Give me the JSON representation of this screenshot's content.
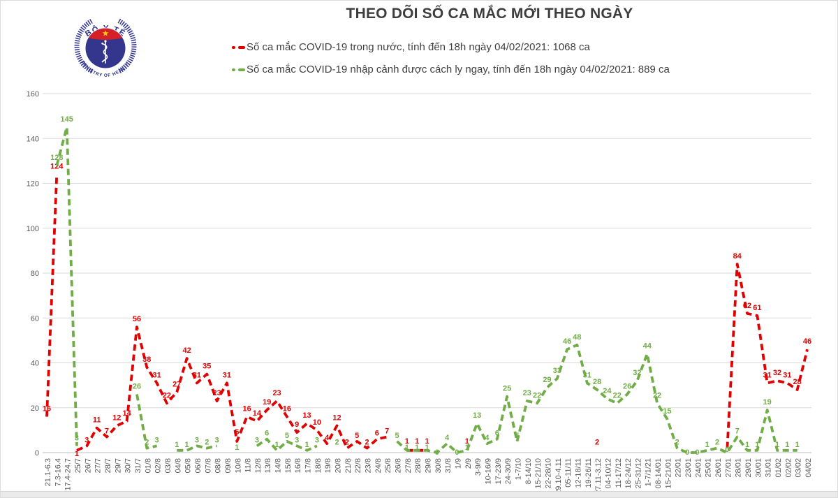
{
  "header": {
    "title": "THEO DÕI SỐ CA MẮC MỚI THEO NGÀY"
  },
  "logo": {
    "top_text": "BỘ Y TẾ",
    "bottom_text": "MINISTRY OF HEALTH",
    "navy": "#34368e",
    "ring_blue": "#2e3192",
    "band_red": "#d42027",
    "star_yellow": "#ffcf00"
  },
  "legend": [
    {
      "label": "Số ca mắc COVID-19 trong nước, tính đến 18h ngày 04/02/2021: 1068 ca",
      "color": "#e00000"
    },
    {
      "label": "Số ca mắc COVID-19 nhập cảnh được cách ly ngay, tính đến 18h ngày 04/02/2021: 889 ca",
      "color": "#70ad47"
    }
  ],
  "chart_data": {
    "type": "line",
    "line_style": "dashed",
    "title": "THEO DÕI SỐ CA MẮC MỚI THEO NGÀY",
    "xlabel": "",
    "ylabel": "",
    "ylim": [
      0,
      160
    ],
    "yticks": [
      0,
      20,
      40,
      60,
      80,
      100,
      120,
      140,
      160
    ],
    "grid": true,
    "grid_color": "#d9d9d9",
    "axis_color": "#bfbfbf",
    "tick_label_color": "#595959",
    "legend_position": "top-left",
    "categories": [
      "21.1-6.3",
      "7.3-16.4",
      "17.4-24.7",
      "25/7",
      "26/7",
      "27/7",
      "28/7",
      "29/7",
      "30/7",
      "31/7",
      "01/8",
      "02/8",
      "03/8",
      "04/8",
      "05/8",
      "06/8",
      "07/8",
      "08/8",
      "09/8",
      "10/8",
      "11/8",
      "12/8",
      "13/8",
      "14/8",
      "15/8",
      "16/8",
      "17/8",
      "18/8",
      "19/8",
      "20/8",
      "21/8",
      "22/8",
      "23/8",
      "24/8",
      "25/8",
      "26/8",
      "27/8",
      "28/8",
      "29/8",
      "30/8",
      "31/8",
      "1/9",
      "2/9",
      "3-9/9",
      "10-16/9",
      "17-23/9",
      "24-30/9",
      "1-7/10",
      "8-14/10",
      "15-21/10",
      "22-28/10",
      "29.10-4.11",
      "05-11/11",
      "12-18/11",
      "19-26/11",
      "27.11-3.12",
      "04-10/12",
      "11-17/12",
      "18-24/12",
      "25-31/12",
      "1-7/1/21",
      "08-14/01",
      "15-21/01",
      "22/01",
      "23/01",
      "24/01",
      "25/01",
      "26/01",
      "27/01",
      "28/01",
      "29/01",
      "30/01",
      "31/01",
      "01/02",
      "02/02",
      "03/02",
      "04/02"
    ],
    "series": [
      {
        "name": "Số ca mắc COVID-19 trong nước",
        "color": "#e00000",
        "hide_labels": [
          68
        ],
        "values": [
          16,
          124,
          null,
          1,
          3,
          11,
          7,
          12,
          14,
          56,
          38,
          31,
          22,
          27,
          42,
          31,
          35,
          23,
          31,
          5,
          16,
          14,
          19,
          23,
          16,
          9,
          13,
          10,
          4,
          12,
          2,
          5,
          2,
          6,
          7,
          null,
          1,
          1,
          1,
          null,
          null,
          null,
          1,
          null,
          null,
          null,
          null,
          null,
          null,
          null,
          null,
          null,
          null,
          null,
          null,
          2,
          null,
          null,
          null,
          null,
          null,
          null,
          null,
          null,
          null,
          null,
          null,
          null,
          2,
          84,
          62,
          61,
          31,
          32,
          31,
          28,
          46
        ]
      },
      {
        "name": "Số ca mắc COVID-19 nhập cảnh được cách ly ngay",
        "color": "#70ad47",
        "hide_labels": [],
        "values": [
          null,
          128,
          145,
          3,
          null,
          null,
          null,
          null,
          null,
          26,
          2,
          3,
          null,
          1,
          1,
          3,
          2,
          3,
          null,
          1,
          null,
          3,
          6,
          1,
          5,
          3,
          1,
          3,
          null,
          2,
          null,
          null,
          null,
          null,
          null,
          5,
          1,
          1,
          1,
          0,
          4,
          0,
          1,
          13,
          4,
          6,
          25,
          5,
          23,
          22,
          29,
          33,
          46,
          48,
          31,
          28,
          24,
          22,
          26,
          32,
          44,
          22,
          15,
          2,
          0,
          0,
          1,
          2,
          0,
          7,
          1,
          1,
          19,
          1,
          1,
          1,
          null
        ]
      }
    ]
  }
}
